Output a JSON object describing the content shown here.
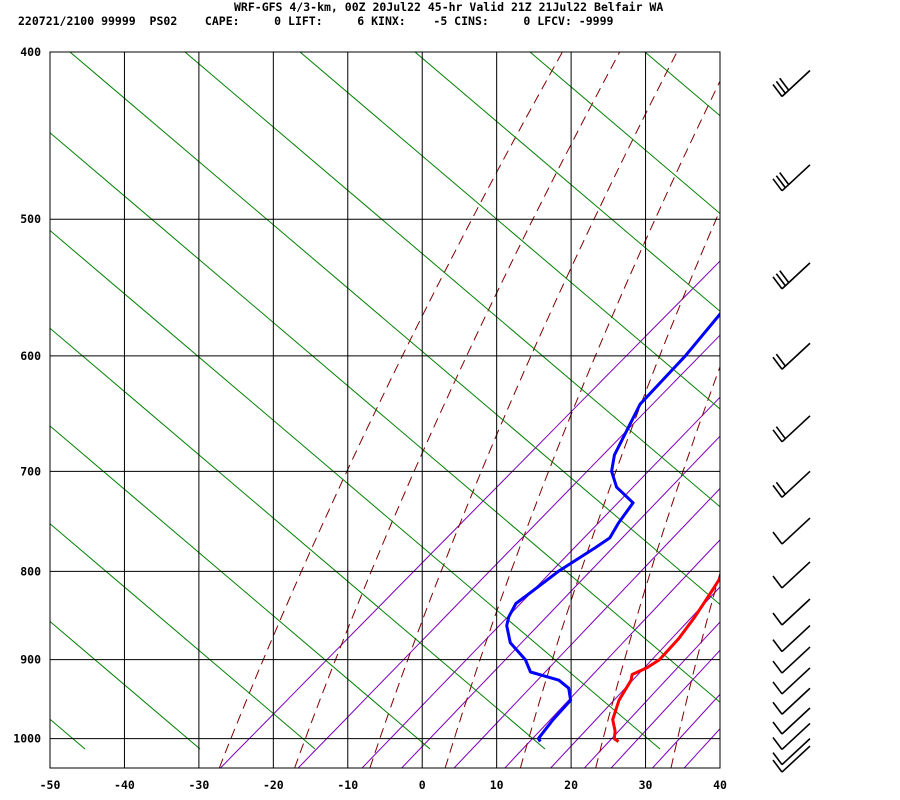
{
  "header": {
    "line1": "WRF-GFS 4/3-km, 00Z 20Jul22 45-hr Valid 21Z 21Jul22 Belfair WA",
    "line2": "220721/2100 99999  PS02    CAPE:     0 LIFT:     6 KINX:    -5 CINS:     0 LFCV: -9999"
  },
  "chart_data": {
    "type": "line",
    "subtype": "skew-T log-P sounding",
    "title": "WRF-GFS 4/3-km, 00Z 20Jul22 45-hr Valid 21Z 21Jul22 Belfair WA",
    "xlabel": "",
    "ylabel": "",
    "x_ticks": [
      -50,
      -40,
      -30,
      -20,
      -10,
      0,
      10,
      20,
      30,
      40
    ],
    "y_ticks": [
      400,
      500,
      600,
      700,
      800,
      900,
      1000
    ],
    "xlim": [
      -50,
      40
    ],
    "ylim": [
      1040,
      400
    ],
    "y_scale": "log",
    "x_axis_skewed": true,
    "grid": true,
    "series": [
      {
        "color": "#ff0000",
        "points": [
          {
            "p": 1004,
            "t": 22.5
          },
          {
            "p": 1000,
            "t": 21.5
          },
          {
            "p": 990,
            "t": 20.5
          },
          {
            "p": 975,
            "t": 18.5
          },
          {
            "p": 950,
            "t": 16.5
          },
          {
            "p": 925,
            "t": 15.2
          },
          {
            "p": 918,
            "t": 14.5
          },
          {
            "p": 910,
            "t": 15.5
          },
          {
            "p": 900,
            "t": 16.0
          },
          {
            "p": 875,
            "t": 15.5
          },
          {
            "p": 850,
            "t": 14.5
          },
          {
            "p": 825,
            "t": 13.2
          },
          {
            "p": 800,
            "t": 11.8
          },
          {
            "p": 775,
            "t": 10.0
          },
          {
            "p": 750,
            "t": 8.5
          },
          {
            "p": 725,
            "t": 7.0
          },
          {
            "p": 700,
            "t": 5.3
          },
          {
            "p": 650,
            "t": 1.5
          },
          {
            "p": 600,
            "t": -2.8
          },
          {
            "p": 550,
            "t": -7.5
          },
          {
            "p": 500,
            "t": -12.7
          },
          {
            "p": 475,
            "t": -15.5
          },
          {
            "p": 450,
            "t": -18.5
          },
          {
            "p": 425,
            "t": -21.5
          },
          {
            "p": 415,
            "t": -22.6
          }
        ]
      },
      {
        "color": "#0000ff",
        "points": [
          {
            "p": 1004,
            "t": 12.0
          },
          {
            "p": 1000,
            "t": 11.3
          },
          {
            "p": 975,
            "t": 10.5
          },
          {
            "p": 950,
            "t": 10.0
          },
          {
            "p": 935,
            "t": 8.0
          },
          {
            "p": 925,
            "t": 5.5
          },
          {
            "p": 915,
            "t": 0.5
          },
          {
            "p": 900,
            "t": -2.0
          },
          {
            "p": 880,
            "t": -6.5
          },
          {
            "p": 860,
            "t": -9.5
          },
          {
            "p": 850,
            "t": -10.5
          },
          {
            "p": 835,
            "t": -11.5
          },
          {
            "p": 825,
            "t": -11.2
          },
          {
            "p": 800,
            "t": -10.5
          },
          {
            "p": 775,
            "t": -9.0
          },
          {
            "p": 765,
            "t": -8.5
          },
          {
            "p": 750,
            "t": -9.5
          },
          {
            "p": 730,
            "t": -10.5
          },
          {
            "p": 715,
            "t": -15.0
          },
          {
            "p": 700,
            "t": -18.0
          },
          {
            "p": 685,
            "t": -20.0
          },
          {
            "p": 640,
            "t": -24.0
          },
          {
            "p": 600,
            "t": -25.0
          },
          {
            "p": 535,
            "t": -28.0
          },
          {
            "p": 500,
            "t": -30.5
          },
          {
            "p": 450,
            "t": -35.5
          },
          {
            "p": 415,
            "t": -39.8
          }
        ]
      }
    ],
    "wind_barbs": [
      {
        "p": 410
      },
      {
        "p": 465
      },
      {
        "p": 530
      },
      {
        "p": 590
      },
      {
        "p": 650
      },
      {
        "p": 700
      },
      {
        "p": 745
      },
      {
        "p": 790
      },
      {
        "p": 830
      },
      {
        "p": 860
      },
      {
        "p": 885
      },
      {
        "p": 910
      },
      {
        "p": 935
      },
      {
        "p": 960
      },
      {
        "p": 980
      },
      {
        "p": 1000
      },
      {
        "p": 1010
      }
    ],
    "background_lines": {
      "isotherms_color": "#000000",
      "dry_adiabats_color": "#800000",
      "moist_adiabats_color": "#008000",
      "mixing_ratio_color": "#8000c0"
    }
  }
}
